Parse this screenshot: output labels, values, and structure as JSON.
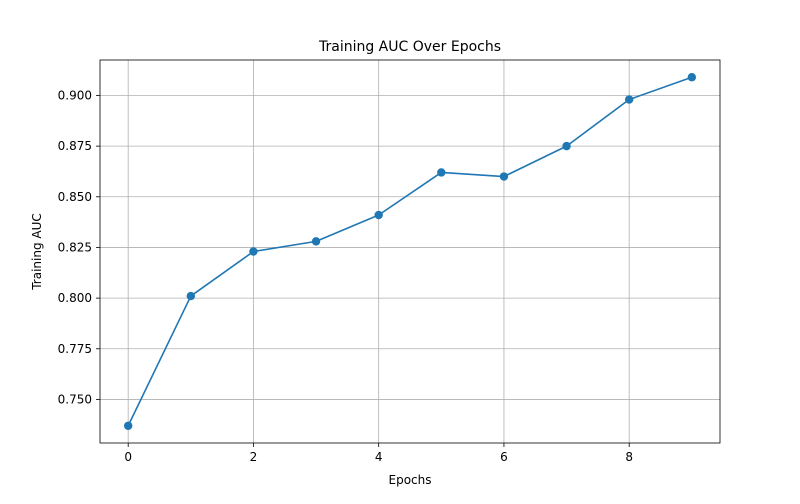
{
  "chart_data": {
    "type": "line",
    "title": "Training AUC Over Epochs",
    "xlabel": "Epochs",
    "ylabel": "Training AUC",
    "x": [
      0,
      1,
      2,
      3,
      4,
      5,
      6,
      7,
      8,
      9
    ],
    "series": [
      {
        "values": [
          0.737,
          0.801,
          0.823,
          0.828,
          0.841,
          0.862,
          0.86,
          0.875,
          0.898,
          0.909
        ],
        "color": "#1f77b4",
        "marker": "circle"
      }
    ],
    "xlim": [
      -0.45,
      9.45
    ],
    "ylim": [
      0.7285,
      0.9175
    ],
    "xticks": [
      0,
      2,
      4,
      6,
      8
    ],
    "xtick_labels": [
      "0",
      "2",
      "4",
      "6",
      "8"
    ],
    "yticks": [
      0.75,
      0.775,
      0.8,
      0.825,
      0.85,
      0.875,
      0.9
    ],
    "ytick_labels": [
      "0.750",
      "0.775",
      "0.800",
      "0.825",
      "0.850",
      "0.875",
      "0.900"
    ],
    "grid": true,
    "legend": "none"
  }
}
